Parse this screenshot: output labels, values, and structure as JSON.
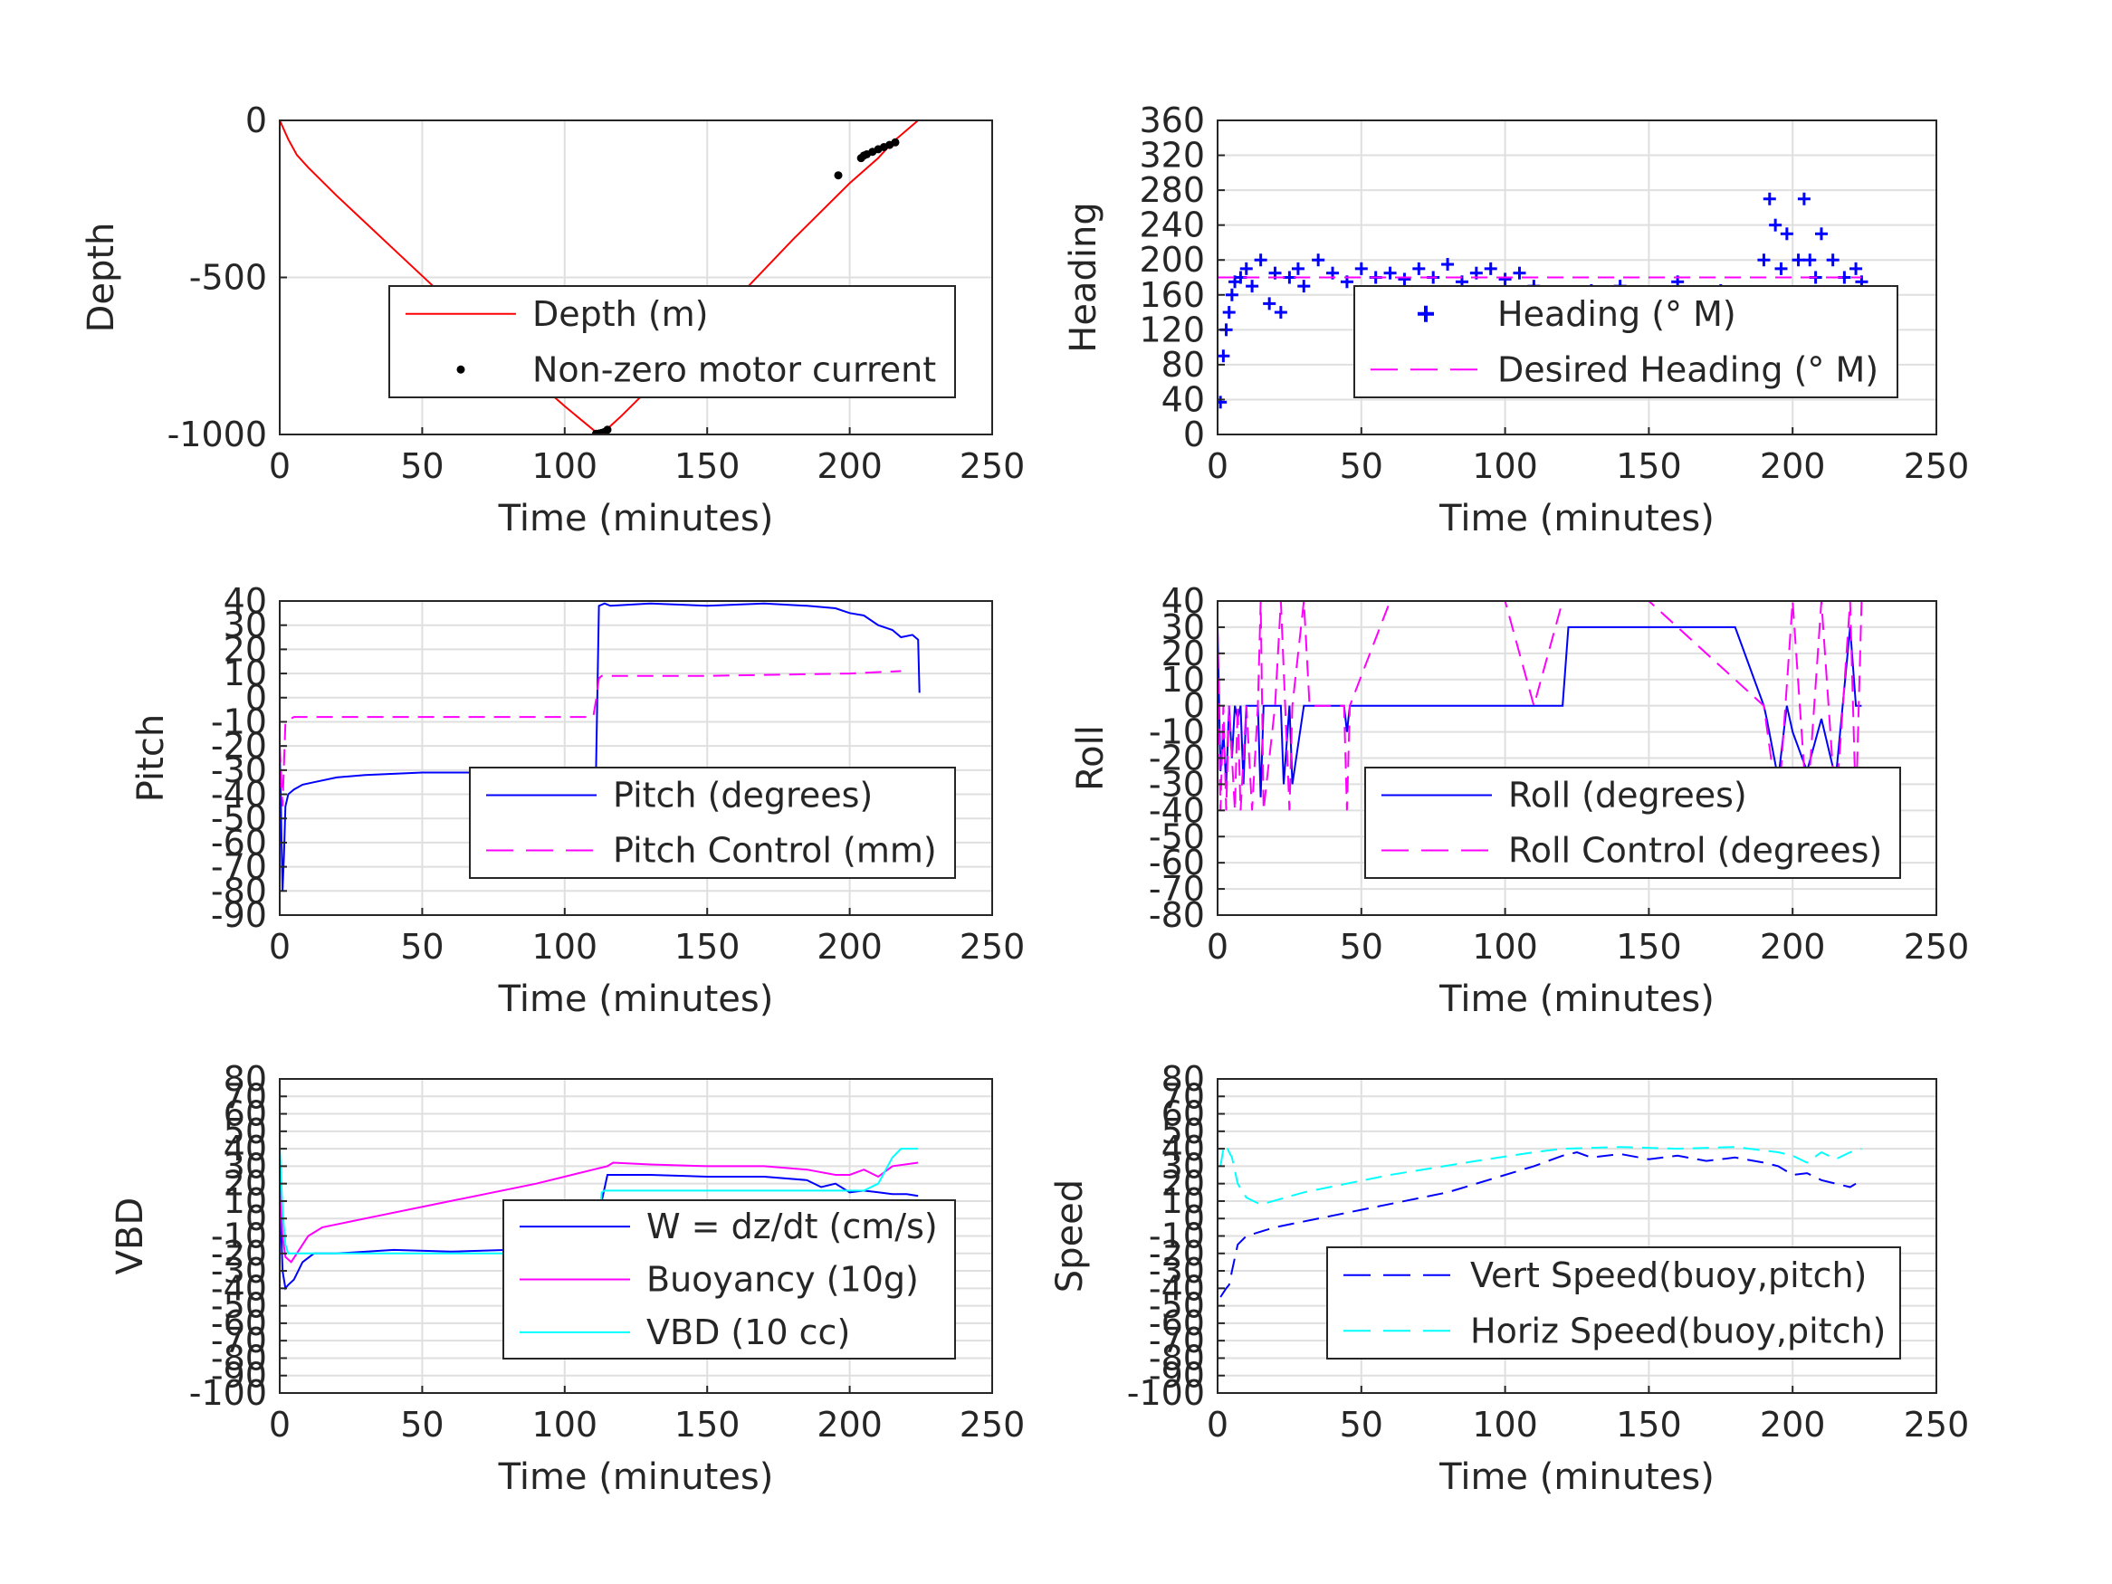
{
  "chart_data": [
    {
      "type": "line",
      "xlabel": "Time (minutes)",
      "ylabel": "Depth",
      "xlim": [
        0,
        250
      ],
      "ylim": [
        -1000,
        0
      ],
      "xticks": [
        0,
        50,
        100,
        150,
        200,
        250
      ],
      "yticks": [
        -1000,
        -500,
        0
      ],
      "grid": true,
      "legend_position": "lower-right",
      "series": [
        {
          "name": "Depth (m)",
          "color": "#ff0000",
          "style": "solid",
          "x": [
            0,
            3,
            6,
            10,
            20,
            40,
            60,
            80,
            100,
            112,
            114,
            120,
            140,
            160,
            180,
            200,
            210,
            215,
            224
          ],
          "y": [
            0,
            -60,
            -110,
            -150,
            -240,
            -410,
            -580,
            -750,
            -910,
            -1000,
            -990,
            -940,
            -760,
            -570,
            -380,
            -200,
            -120,
            -70,
            0
          ]
        },
        {
          "name": "Non-zero motor current",
          "color": "#000000",
          "style": "dot",
          "x": [
            111,
            112,
            113,
            114,
            115,
            196,
            204,
            205,
            206,
            208,
            210,
            212,
            214,
            216
          ],
          "y": [
            -998,
            -997,
            -995,
            -992,
            -985,
            -175,
            -120,
            -112,
            -108,
            -100,
            -92,
            -85,
            -78,
            -70
          ]
        }
      ]
    },
    {
      "type": "scatter",
      "xlabel": "Time (minutes)",
      "ylabel": "Heading",
      "xlim": [
        0,
        250
      ],
      "ylim": [
        0,
        360
      ],
      "xticks": [
        0,
        50,
        100,
        150,
        200,
        250
      ],
      "yticks": [
        0,
        40,
        80,
        120,
        160,
        200,
        240,
        280,
        320,
        360
      ],
      "grid": true,
      "legend_position": "lower-right",
      "series": [
        {
          "name": "Heading (° M)",
          "color": "#0000ff",
          "style": "plus",
          "x": [
            1,
            2,
            3,
            4,
            5,
            6,
            8,
            10,
            12,
            15,
            18,
            20,
            22,
            25,
            28,
            30,
            35,
            40,
            45,
            50,
            55,
            60,
            65,
            70,
            75,
            80,
            85,
            90,
            95,
            100,
            105,
            110,
            115,
            120,
            125,
            130,
            135,
            140,
            145,
            150,
            155,
            160,
            165,
            170,
            175,
            180,
            185,
            188,
            190,
            192,
            194,
            196,
            198,
            200,
            202,
            204,
            206,
            208,
            210,
            212,
            214,
            216,
            218,
            220,
            222,
            224
          ],
          "y": [
            37,
            90,
            120,
            140,
            160,
            175,
            180,
            190,
            170,
            200,
            150,
            185,
            140,
            180,
            190,
            170,
            200,
            185,
            175,
            190,
            180,
            185,
            178,
            190,
            180,
            195,
            175,
            185,
            190,
            178,
            185,
            170,
            160,
            150,
            140,
            165,
            150,
            170,
            145,
            160,
            135,
            175,
            150,
            130,
            165,
            145,
            150,
            160,
            200,
            270,
            240,
            190,
            230,
            150,
            200,
            270,
            200,
            180,
            230,
            150,
            200,
            140,
            180,
            130,
            190,
            175
          ]
        },
        {
          "name": "Desired Heading (° M)",
          "color": "#ff00ff",
          "style": "dashed",
          "x": [
            0,
            224
          ],
          "y": [
            180,
            180
          ]
        }
      ]
    },
    {
      "type": "line",
      "xlabel": "Time (minutes)",
      "ylabel": "Pitch",
      "xlim": [
        0,
        250
      ],
      "ylim": [
        -90,
        40
      ],
      "xticks": [
        0,
        50,
        100,
        150,
        200,
        250
      ],
      "yticks": [
        -90,
        -80,
        -70,
        -60,
        -50,
        -40,
        -30,
        -20,
        -10,
        0,
        10,
        20,
        30,
        40
      ],
      "grid": true,
      "legend_position": "lower-right",
      "series": [
        {
          "name": "Pitch (degrees)",
          "color": "#0000ff",
          "style": "solid",
          "x": [
            0,
            1,
            1.5,
            2,
            3,
            5,
            8,
            12,
            20,
            30,
            50,
            70,
            90,
            100,
            108,
            111,
            112,
            114,
            116,
            130,
            150,
            170,
            185,
            195,
            200,
            205,
            210,
            215,
            218,
            222,
            224,
            224.5
          ],
          "y": [
            -20,
            -80,
            -65,
            -45,
            -40,
            -38,
            -36,
            -35,
            -33,
            -32,
            -31,
            -31,
            -30,
            -30,
            -30,
            -30,
            38,
            39,
            38,
            39,
            38,
            39,
            38,
            37,
            35,
            34,
            30,
            28,
            25,
            26,
            24,
            2
          ]
        },
        {
          "name": "Pitch Control (mm)",
          "color": "#ff00ff",
          "style": "dashed",
          "x": [
            0,
            1,
            2,
            5,
            110,
            111,
            112,
            113,
            150,
            200,
            218
          ],
          "y": [
            -20,
            -45,
            -10,
            -8,
            -8,
            -1,
            8,
            9,
            9,
            10,
            11
          ]
        }
      ]
    },
    {
      "type": "line",
      "xlabel": "Time (minutes)",
      "ylabel": "Roll",
      "xlim": [
        0,
        250
      ],
      "ylim": [
        -80,
        40
      ],
      "xticks": [
        0,
        50,
        100,
        150,
        200,
        250
      ],
      "yticks": [
        -80,
        -70,
        -60,
        -50,
        -40,
        -30,
        -20,
        -10,
        0,
        10,
        20,
        30,
        40
      ],
      "grid": true,
      "legend_position": "lower-right",
      "series": [
        {
          "name": "Roll (degrees)",
          "color": "#0000ff",
          "style": "solid",
          "x": [
            0,
            1,
            2,
            3,
            4,
            5,
            6,
            7,
            8,
            9,
            10,
            14,
            15,
            16,
            22,
            23,
            25,
            26,
            30,
            32,
            44,
            45,
            46,
            60,
            80,
            100,
            110,
            120,
            122,
            130,
            140,
            150,
            160,
            170,
            180,
            190,
            191,
            195,
            198,
            200,
            205,
            210,
            215,
            220,
            222,
            224
          ],
          "y": [
            30,
            -25,
            -10,
            -30,
            0,
            -20,
            0,
            -5,
            0,
            -30,
            0,
            0,
            -35,
            0,
            0,
            -30,
            0,
            -30,
            0,
            0,
            0,
            -10,
            0,
            0,
            0,
            0,
            0,
            0,
            30,
            30,
            30,
            30,
            30,
            30,
            30,
            0,
            -5,
            -28,
            0,
            -10,
            -25,
            -5,
            -28,
            30,
            0,
            0
          ]
        },
        {
          "name": "Roll Control (degrees)",
          "color": "#ff00ff",
          "style": "dashed",
          "x": [
            0,
            1,
            2,
            3,
            4,
            6,
            7,
            8,
            10,
            12,
            14,
            15,
            16,
            20,
            22,
            25,
            26,
            30,
            32,
            44,
            45,
            46,
            60,
            80,
            100,
            110,
            120,
            150,
            190,
            195,
            200,
            205,
            210,
            215,
            220,
            222,
            224
          ],
          "y": [
            30,
            -40,
            0,
            -40,
            0,
            -40,
            0,
            -40,
            0,
            -40,
            0,
            40,
            -40,
            0,
            40,
            -40,
            0,
            40,
            0,
            0,
            -40,
            0,
            40,
            40,
            40,
            0,
            40,
            40,
            0,
            -40,
            40,
            -40,
            40,
            -40,
            40,
            -40,
            40
          ]
        }
      ]
    },
    {
      "type": "line",
      "xlabel": "Time (minutes)",
      "ylabel": "VBD",
      "xlim": [
        0,
        250
      ],
      "ylim": [
        -100,
        80
      ],
      "xticks": [
        0,
        50,
        100,
        150,
        200,
        250
      ],
      "yticks": [
        -100,
        -90,
        -80,
        -70,
        -60,
        -50,
        -40,
        -30,
        -20,
        -10,
        0,
        10,
        20,
        30,
        40,
        50,
        60,
        70,
        80
      ],
      "grid": true,
      "legend_position": "lower-right",
      "series": [
        {
          "name": "W = dz/dt (cm/s)",
          "color": "#0000ff",
          "style": "solid",
          "x": [
            0,
            1,
            2,
            3,
            5,
            8,
            12,
            20,
            40,
            60,
            80,
            100,
            108,
            111,
            112,
            113,
            115,
            130,
            150,
            170,
            185,
            190,
            195,
            200,
            205,
            210,
            215,
            220,
            224
          ],
          "y": [
            20,
            -30,
            -40,
            -38,
            -35,
            -25,
            -20,
            -20,
            -18,
            -19,
            -18,
            -17,
            -17,
            -16,
            -5,
            10,
            25,
            25,
            24,
            24,
            22,
            18,
            20,
            15,
            16,
            15,
            14,
            14,
            13
          ]
        },
        {
          "name": "Buoyancy (10g)",
          "color": "#ff00ff",
          "style": "solid",
          "x": [
            0,
            1,
            2,
            4,
            6,
            8,
            10,
            15,
            30,
            60,
            90,
            110,
            115,
            117,
            130,
            150,
            170,
            185,
            195,
            200,
            205,
            210,
            215,
            224
          ],
          "y": [
            20,
            -10,
            -22,
            -25,
            -20,
            -15,
            -10,
            -5,
            0,
            10,
            20,
            28,
            30,
            32,
            31,
            30,
            30,
            28,
            25,
            25,
            28,
            24,
            30,
            32
          ]
        },
        {
          "name": "VBD (10 cc)",
          "color": "#00ffff",
          "style": "solid",
          "x": [
            0,
            1,
            2,
            3,
            5,
            10,
            50,
            100,
            111,
            112,
            113,
            114,
            150,
            200,
            205,
            210,
            215,
            218,
            224
          ],
          "y": [
            40,
            5,
            -15,
            -20,
            -20,
            -20,
            -20,
            -20,
            -20,
            -5,
            15,
            16,
            16,
            16,
            16,
            20,
            35,
            40,
            40
          ]
        }
      ]
    },
    {
      "type": "line",
      "xlabel": "Time (minutes)",
      "ylabel": "Speed",
      "xlim": [
        0,
        250
      ],
      "ylim": [
        -100,
        80
      ],
      "xticks": [
        0,
        50,
        100,
        150,
        200,
        250
      ],
      "yticks": [
        -100,
        -90,
        -80,
        -70,
        -60,
        -50,
        -40,
        -30,
        -20,
        -10,
        0,
        10,
        20,
        30,
        40,
        50,
        60,
        70,
        80
      ],
      "grid": true,
      "legend_position": "lower-right",
      "series": [
        {
          "name": "Vert Speed(buoy,pitch)",
          "color": "#0000ff",
          "style": "dashed",
          "x": [
            1,
            3,
            4,
            5,
            7,
            10,
            20,
            50,
            80,
            110,
            120,
            125,
            130,
            140,
            150,
            160,
            170,
            180,
            190,
            195,
            200,
            205,
            210,
            215,
            220,
            222
          ],
          "y": [
            -45,
            -40,
            -38,
            -30,
            -15,
            -10,
            -5,
            5,
            15,
            30,
            36,
            38,
            35,
            37,
            34,
            36,
            33,
            35,
            32,
            30,
            25,
            26,
            22,
            20,
            18,
            20
          ]
        },
        {
          "name": "Horiz Speed(buoy,pitch)",
          "color": "#00ffff",
          "style": "dashed",
          "x": [
            1,
            2,
            3,
            4,
            5,
            7,
            10,
            15,
            30,
            60,
            90,
            110,
            120,
            140,
            160,
            180,
            195,
            200,
            205,
            210,
            215,
            220,
            224
          ],
          "y": [
            30,
            40,
            42,
            38,
            35,
            20,
            12,
            8,
            15,
            25,
            33,
            38,
            40,
            41,
            40,
            41,
            38,
            36,
            32,
            38,
            34,
            38,
            40
          ]
        }
      ]
    }
  ]
}
